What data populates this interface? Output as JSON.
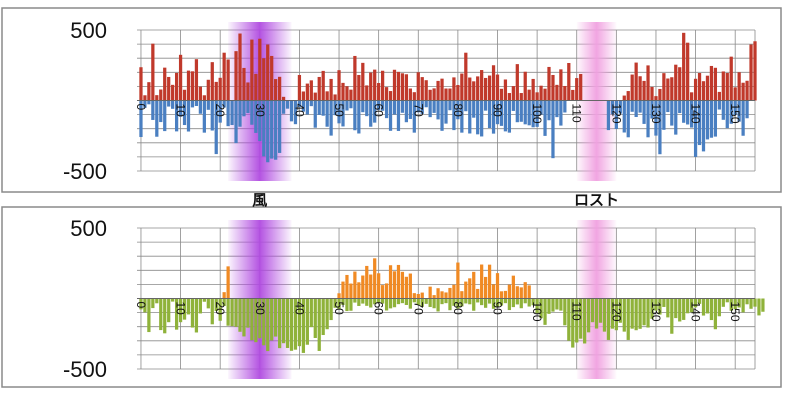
{
  "colors": {
    "top_positive": "#c0392b",
    "top_negative": "#4a7fc1",
    "bottom_positive": "#f08a24",
    "bottom_negative": "#8fb23a",
    "band_wind": "#b04ae0",
    "band_lost": "#f0a0e0",
    "grid": "#8a8a8a",
    "frame": "#8a8a8a"
  },
  "band_labels": [
    {
      "text": "風",
      "x_value": 30
    },
    {
      "text": "ロスト",
      "x_value": 115
    }
  ],
  "chart_data": [
    {
      "type": "bar",
      "ylim": [
        -500,
        500
      ],
      "y_tick_labels": [
        "500",
        "-500"
      ],
      "x_tick_labels": [
        "0",
        "10",
        "20",
        "30",
        "40",
        "50",
        "60",
        "70",
        "80",
        "90",
        "100",
        "110",
        "120",
        "130",
        "140",
        "150"
      ],
      "xlim": [
        -1,
        155
      ],
      "grid": true,
      "shaded_bands": [
        {
          "label": "風",
          "from": 22,
          "to": 38
        },
        {
          "label": "ロスト",
          "from": 110,
          "to": 120
        }
      ],
      "series": [
        {
          "values": [
            236,
            37,
            130,
            403,
            38,
            78,
            233,
            167,
            111,
            196,
            324,
            76,
            212,
            207,
            293,
            98,
            37,
            147,
            272,
            132,
            161,
            339,
            291,
            0,
            350,
            475,
            231,
            128,
            432,
            189,
            438,
            300,
            397,
            316,
            152,
            168,
            26,
            0,
            0,
            0,
            181,
            64,
            120,
            143,
            56,
            167,
            210,
            65,
            153,
            43,
            215,
            125,
            101,
            77,
            316,
            181,
            267,
            107,
            198,
            219,
            124,
            211,
            95,
            67,
            218,
            203,
            193,
            186,
            85,
            59,
            200,
            166,
            144,
            76,
            86,
            139,
            155,
            85,
            85,
            164,
            110,
            191,
            339,
            163,
            136,
            171,
            216,
            160,
            177,
            250,
            184,
            83,
            149,
            53,
            102,
            258,
            53,
            204,
            77,
            153,
            58,
            105,
            84,
            238,
            181,
            111,
            221,
            103,
            266,
            75,
            159,
            188,
            0,
            0,
            0,
            0,
            0,
            0,
            0,
            0,
            0,
            0,
            35,
            67,
            184,
            269,
            172,
            139,
            249,
            96,
            31,
            82,
            194,
            156,
            165,
            254,
            236,
            480,
            410,
            58,
            154,
            195,
            137,
            176,
            245,
            232,
            61,
            206,
            195,
            311,
            93,
            200,
            126,
            140,
            397,
            420
          ]
        },
        {
          "values": [
            -259,
            -52,
            -27,
            -138,
            -257,
            -153,
            -217,
            -43,
            -59,
            -219,
            -115,
            -174,
            -220,
            -49,
            -39,
            -94,
            -228,
            -66,
            -213,
            -380,
            -157,
            -50,
            -182,
            -174,
            -302,
            -186,
            -112,
            -89,
            -172,
            -230,
            -288,
            -396,
            -438,
            -412,
            -420,
            -372,
            -94,
            -58,
            -148,
            -168,
            -46,
            -79,
            -99,
            -40,
            -193,
            -102,
            -108,
            -186,
            -249,
            -104,
            -162,
            -184,
            -71,
            -55,
            -211,
            -234,
            -83,
            -111,
            -186,
            -157,
            -67,
            -73,
            -125,
            -215,
            -99,
            -216,
            -87,
            -154,
            -131,
            -228,
            -84,
            -95,
            -48,
            -118,
            -88,
            -134,
            -215,
            -164,
            -69,
            -210,
            -133,
            -228,
            -76,
            -234,
            -122,
            -240,
            -255,
            -72,
            -195,
            -235,
            -168,
            -180,
            -219,
            -228,
            -74,
            -154,
            -151,
            -169,
            -176,
            -190,
            -187,
            -100,
            -251,
            -140,
            -409,
            -118,
            -178,
            -85,
            0,
            0,
            0,
            0,
            0,
            0,
            0,
            0,
            0,
            0,
            -210,
            -98,
            -202,
            -93,
            -227,
            -261,
            -80,
            -117,
            -86,
            -166,
            -261,
            -128,
            -249,
            -381,
            -208,
            -82,
            -178,
            -242,
            -89,
            -158,
            -170,
            -192,
            -400,
            -316,
            -361,
            -276,
            -264,
            -256,
            -64,
            -137,
            -196,
            -165,
            -103,
            -150,
            -250,
            -126
          ]
        }
      ]
    },
    {
      "type": "bar",
      "ylim": [
        -500,
        500
      ],
      "y_tick_labels": [
        "500",
        "-500"
      ],
      "x_tick_labels": [
        "0",
        "10",
        "20",
        "30",
        "40",
        "50",
        "60",
        "70",
        "80",
        "90",
        "100",
        "110",
        "120",
        "130",
        "140",
        "150"
      ],
      "xlim": [
        -1,
        155
      ],
      "grid": true,
      "shaded_bands": [
        {
          "label": "風",
          "from": 22,
          "to": 38
        },
        {
          "label": "ロスト",
          "from": 110,
          "to": 120
        }
      ],
      "series": [
        {
          "values": [
            0,
            0,
            0,
            0,
            0,
            0,
            0,
            0,
            0,
            0,
            0,
            0,
            0,
            0,
            0,
            0,
            0,
            0,
            0,
            0,
            0,
            45,
            228,
            0,
            0,
            0,
            0,
            0,
            0,
            0,
            0,
            0,
            0,
            0,
            0,
            0,
            0,
            0,
            0,
            0,
            0,
            0,
            0,
            0,
            0,
            0,
            0,
            0,
            0,
            0,
            37,
            120,
            167,
            106,
            191,
            115,
            163,
            231,
            170,
            285,
            179,
            95,
            107,
            236,
            193,
            238,
            189,
            154,
            177,
            38,
            32,
            42,
            0,
            84,
            24,
            73,
            51,
            43,
            75,
            97,
            255,
            52,
            120,
            143,
            189,
            68,
            241,
            153,
            240,
            100,
            180,
            51,
            54,
            98,
            162,
            87,
            79,
            116,
            93,
            0,
            0,
            0,
            0,
            0,
            0,
            0,
            0,
            0,
            0,
            0,
            0,
            0,
            0,
            0,
            0,
            0,
            0,
            0,
            0,
            0,
            0,
            0,
            0,
            0,
            0,
            0,
            0,
            0,
            0,
            0,
            0,
            0,
            0,
            0,
            0,
            0,
            0,
            0,
            0,
            0,
            0,
            0,
            0,
            0,
            0,
            0,
            0,
            0,
            0,
            0,
            0,
            0,
            0,
            0,
            0,
            0
          ]
        },
        {
          "values": [
            -77,
            -98,
            -238,
            -68,
            -34,
            -224,
            -247,
            -168,
            -22,
            -221,
            -168,
            -150,
            -113,
            -206,
            -241,
            -106,
            -23,
            -70,
            -183,
            -89,
            -158,
            -53,
            -193,
            -196,
            -201,
            -236,
            -269,
            -207,
            -296,
            -310,
            -282,
            -332,
            -373,
            -298,
            -270,
            -352,
            -317,
            -351,
            -371,
            -363,
            -338,
            -386,
            -328,
            -203,
            -280,
            -372,
            -259,
            -218,
            -153,
            -66,
            -74,
            -46,
            -89,
            -87,
            -29,
            -53,
            -36,
            -52,
            -64,
            -41,
            -28,
            -36,
            -85,
            -70,
            -62,
            -40,
            -33,
            -46,
            -72,
            -27,
            -46,
            -59,
            -38,
            -60,
            -69,
            -92,
            -40,
            -33,
            -83,
            -52,
            -70,
            -56,
            -35,
            -41,
            -87,
            -28,
            -47,
            -66,
            -36,
            -73,
            -57,
            -50,
            -33,
            -82,
            -61,
            -42,
            -69,
            -34,
            -57,
            -48,
            -104,
            -140,
            -187,
            -109,
            -93,
            -78,
            -86,
            -190,
            -299,
            -348,
            -312,
            -285,
            -319,
            -240,
            -168,
            -213,
            -172,
            -235,
            -294,
            -214,
            -225,
            -172,
            -235,
            -294,
            -214,
            -225,
            -215,
            -190,
            -206,
            -144,
            -86,
            -114,
            -60,
            -134,
            -250,
            -139,
            -163,
            -152,
            -105,
            -98,
            -63,
            -38,
            -121,
            -106,
            -153,
            -218,
            -126,
            -59,
            -27,
            -87,
            -75,
            -64,
            -98,
            -41,
            -73,
            -58,
            -120,
            -94
          ]
        }
      ]
    }
  ]
}
